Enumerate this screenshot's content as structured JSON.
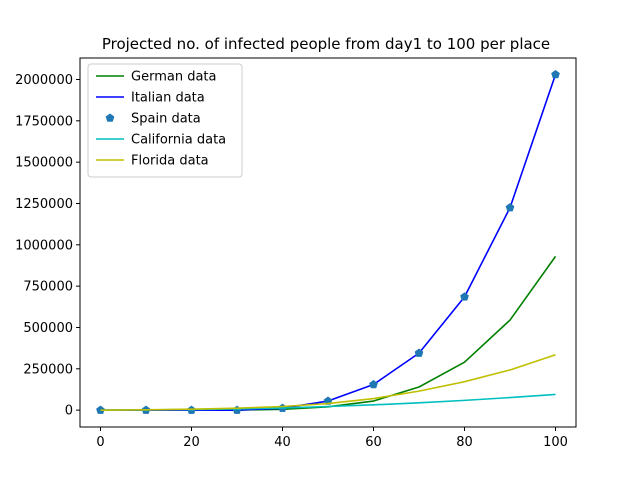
{
  "chart_data": {
    "type": "line",
    "title": "Projected no. of infected people from day1 to 100 per place",
    "xlabel": "",
    "ylabel": "",
    "xlim": [
      -4.5,
      104.5
    ],
    "ylim": [
      -102000,
      2130000
    ],
    "x_ticks": [
      0,
      20,
      40,
      60,
      80,
      100
    ],
    "y_ticks": [
      0,
      250000,
      500000,
      750000,
      1000000,
      1250000,
      1500000,
      1750000,
      2000000
    ],
    "x": [
      0,
      10,
      20,
      30,
      40,
      50,
      60,
      70,
      80,
      90,
      100
    ],
    "legend": "upper-left",
    "grid": false,
    "series": [
      {
        "name": "German data",
        "color": "#008000",
        "style": "line",
        "values": [
          0,
          0,
          0,
          500,
          5000,
          20000,
          55000,
          140000,
          290000,
          545000,
          930000
        ]
      },
      {
        "name": "Italian data",
        "color": "#0000ff",
        "style": "line",
        "values": [
          0,
          0,
          0,
          0,
          12000,
          55000,
          155000,
          345000,
          685000,
          1225000,
          2030000
        ]
      },
      {
        "name": "Spain data",
        "color": "#1f77b4",
        "style": "marker",
        "values": [
          0,
          0,
          0,
          0,
          12000,
          55000,
          155000,
          345000,
          685000,
          1225000,
          2030000
        ]
      },
      {
        "name": "California data",
        "color": "#00bfbf",
        "style": "line",
        "values": [
          0,
          1500,
          3500,
          7000,
          13000,
          22000,
          32000,
          44000,
          59000,
          76000,
          95000
        ]
      },
      {
        "name": "Florida data",
        "color": "#bfbf00",
        "style": "line",
        "values": [
          0,
          2000,
          6000,
          12000,
          22000,
          40000,
          70000,
          115000,
          172000,
          243000,
          335000
        ]
      }
    ]
  }
}
